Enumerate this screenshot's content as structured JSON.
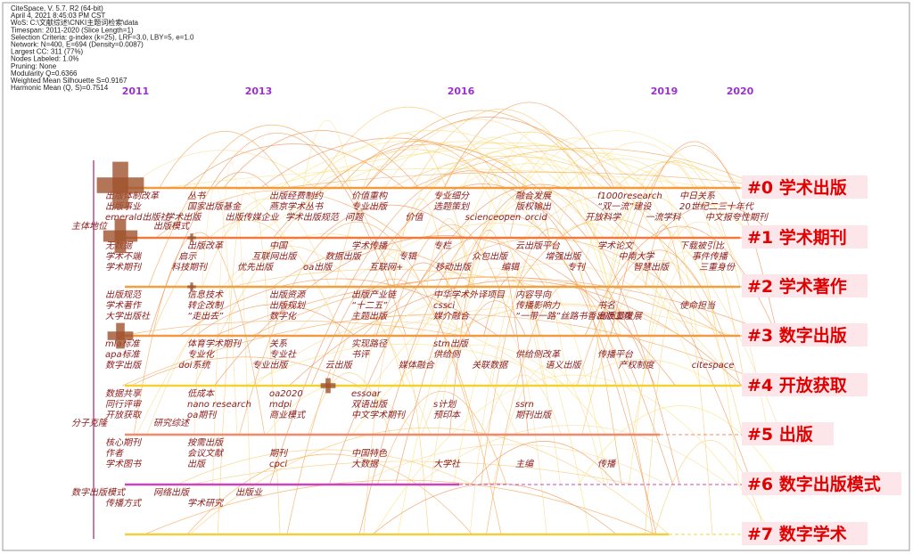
{
  "header": [
    "CiteSpace, V. 5.7. R2 (64-bit)",
    "April 4, 2021 8:45:03 PM CST",
    "WoS: C:\\文献综述\\CNKI主题词检索\\data",
    "Timespan: 2011-2020 (Slice Length=1)",
    "Selection Criteria: g-index (k=25), LRF=3.0, LBY=5, e=1.0",
    "Network: N=400, E=694 (Density=0.0087)",
    "Largest CC: 311 (77%)",
    "Nodes Labeled: 1.0%",
    "Pruning: None",
    "Modularity Q=0.6366",
    "Weighted Mean Silhouette S=0.9167",
    "Harmonic Mean (Q, S)=0.7514"
  ],
  "years": [
    "2011",
    "2013",
    "2016",
    "2019",
    "2020"
  ],
  "clusters": [
    {
      "label": "#0 学术出版",
      "keywords": [
        [
          "出版体制改革",
          "丛书",
          "出版经费制约",
          "价值重构",
          "专业细分",
          "融合发展",
          "f1000research",
          "中日关系"
        ],
        [
          "出版事业",
          "国家出版基金",
          "燕京学术丛书",
          "专业出版",
          "选题策划",
          "版权输出",
          "“双一流”建设",
          "20世纪二三十年代"
        ],
        [
          "emerald出版社",
          "学术出版",
          "出版传媒企业",
          "学术出版规范",
          "问题",
          "价值",
          "scienceopen",
          "orcid",
          "开放科学",
          "一流学科",
          "中文报夸性期刊"
        ]
      ]
    },
    {
      "label": "#1 学术期刊",
      "keywords": [
        [
          "主体地位",
          "出版模式"
        ],
        [
          "无数据",
          "出版改革",
          "中国",
          "学术传播",
          "专栏",
          "云出版平台",
          "学术论文",
          "下载被引比"
        ],
        [
          "学术不端",
          "启示",
          "互联网出版",
          "数据出版",
          "专辑",
          "众包出版",
          "增强出版",
          "中南大学",
          "事件传播"
        ],
        [
          "学术期刊",
          "科技期刊",
          "优先出版",
          "oa出版",
          "互联网+",
          "移动出版",
          "编辑",
          "专刊",
          "智慧出版",
          "三重身份"
        ]
      ]
    },
    {
      "label": "#2 学术著作",
      "keywords": [
        [
          "出版规范",
          "信息技术",
          "出版资源",
          "出版产业链",
          "中华学术外译项目",
          "内容导向"
        ],
        [
          "学术著作",
          "转企改制",
          "出版规划",
          "“十二五”",
          "cssci",
          "传播影响力",
          "书名",
          "使命担当"
        ],
        [
          "大学出版社",
          "“走出去”",
          "数字化",
          "主题出版",
          "媒介融合",
          "“一带一路”丝路书香出版工程",
          "高质量发展"
        ]
      ]
    },
    {
      "label": "#3 数字出版",
      "keywords": [
        [
          "mla标准",
          "体育学术期刊",
          "关系",
          "实现路径",
          "stm出版"
        ],
        [
          "apa标准",
          "专业化",
          "专业社",
          "书评",
          "供给侧",
          "供给侧改革",
          "传播平台"
        ],
        [
          "数字出版",
          "doi系统",
          "专业出版",
          "云出版",
          "媒体融合",
          "关联数据",
          "语义出版",
          "产权制度",
          "citespace"
        ]
      ]
    },
    {
      "label": "#4 开放获取",
      "keywords": [
        [
          "数据共享",
          "低成本",
          "oa2020",
          "essoar"
        ],
        [
          "同行评审",
          "nano research",
          "mdpi",
          "双语出版",
          "s计划",
          "ssrn"
        ],
        [
          "开放获取",
          "oa期刊",
          "商业模式",
          "中文学术期刊",
          "预印本",
          "期刊出版"
        ]
      ]
    },
    {
      "label": "#5 出版",
      "keywords": [
        [
          "分子克隆",
          "研究综述"
        ],
        [
          "核心期刊",
          "按需出版"
        ],
        [
          "作者",
          "会议文献",
          "期刊",
          "中国特色"
        ],
        [
          "学术图书",
          "出版",
          "cpci",
          "大数据",
          "大学社",
          "主编",
          "传播"
        ]
      ]
    },
    {
      "label": "#6 数字出版模式",
      "keywords": [
        [
          "数字出版模式",
          "网络出版",
          "出版业"
        ],
        [
          "传播方式",
          "学术研究"
        ]
      ]
    },
    {
      "label": "#7 数字学术",
      "keywords": []
    }
  ]
}
